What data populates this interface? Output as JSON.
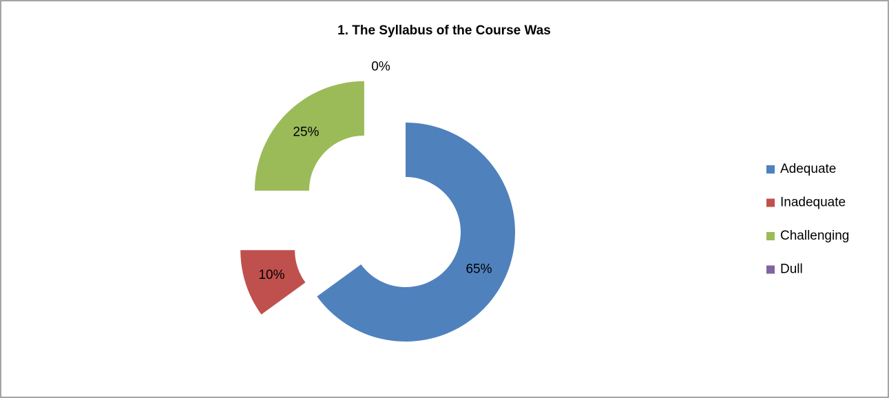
{
  "chart_data": {
    "type": "donut",
    "title": "1. The Syllabus of the Course Was",
    "categories": [
      "Adequate",
      "Inadequate",
      "Challenging",
      "Dull"
    ],
    "values": [
      65,
      10,
      25,
      0
    ],
    "value_labels": [
      "65%",
      "10%",
      "25%",
      "0%"
    ],
    "colors": [
      "#4f81bd",
      "#c0504d",
      "#9bbb59",
      "#8064a2"
    ],
    "legend": "right"
  }
}
